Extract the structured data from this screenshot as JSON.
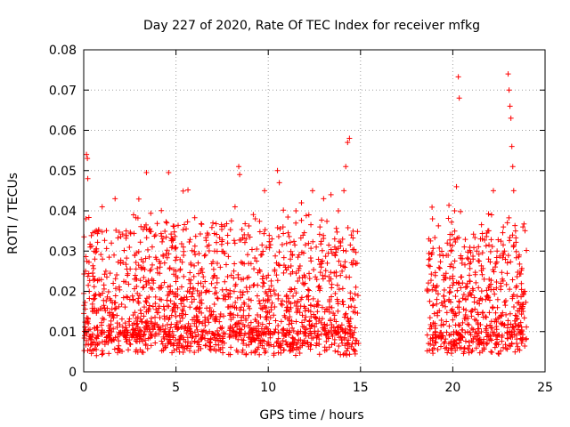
{
  "chart_data": {
    "type": "scatter",
    "title": "Day 227 of 2020, Rate Of TEC Index for receiver mfkg",
    "xlabel": "GPS time / hours",
    "ylabel": "ROTI / TECUs",
    "xlim": [
      0,
      25
    ],
    "ylim": [
      0,
      0.08
    ],
    "x_ticks": [
      "0",
      "5",
      "10",
      "15",
      "20",
      "25"
    ],
    "y_ticks": [
      "0",
      "0.01",
      "0.02",
      "0.03",
      "0.04",
      "0.05",
      "0.06",
      "0.07",
      "0.08"
    ],
    "x_tick_values": [
      0,
      5,
      10,
      15,
      20,
      25
    ],
    "y_tick_values": [
      0,
      0.01,
      0.02,
      0.03,
      0.04,
      0.05,
      0.06,
      0.07,
      0.08
    ],
    "grid": true,
    "legend": "none",
    "marker": "+",
    "color": "#ff0000",
    "data_gap_hours": [
      14.9,
      18.6
    ],
    "points": [
      [
        0.05,
        0.009
      ],
      [
        0.1,
        0.025
      ],
      [
        0.12,
        0.038
      ],
      [
        0.15,
        0.054
      ],
      [
        0.2,
        0.053
      ],
      [
        0.22,
        0.048
      ],
      [
        0.25,
        0.012
      ],
      [
        0.3,
        0.02
      ],
      [
        0.35,
        0.031
      ],
      [
        0.4,
        0.008
      ],
      [
        0.5,
        0.015
      ],
      [
        0.6,
        0.028
      ],
      [
        0.7,
        0.011
      ],
      [
        0.8,
        0.035
      ],
      [
        0.9,
        0.019
      ],
      [
        1.0,
        0.041
      ],
      [
        1.1,
        0.013
      ],
      [
        1.2,
        0.025
      ],
      [
        1.4,
        0.009
      ],
      [
        1.5,
        0.032
      ],
      [
        1.6,
        0.022
      ],
      [
        1.7,
        0.043
      ],
      [
        1.8,
        0.014
      ],
      [
        2.0,
        0.027
      ],
      [
        2.2,
        0.01
      ],
      [
        2.3,
        0.035
      ],
      [
        2.5,
        0.018
      ],
      [
        2.7,
        0.039
      ],
      [
        2.9,
        0.012
      ],
      [
        3.1,
        0.026
      ],
      [
        3.3,
        0.036
      ],
      [
        3.4,
        0.0495
      ],
      [
        3.5,
        0.015
      ],
      [
        3.7,
        0.023
      ],
      [
        3.9,
        0.034
      ],
      [
        4.1,
        0.011
      ],
      [
        4.3,
        0.029
      ],
      [
        4.5,
        0.037
      ],
      [
        4.6,
        0.0495
      ],
      [
        4.7,
        0.02
      ],
      [
        4.8,
        0.033
      ],
      [
        5.0,
        0.025
      ],
      [
        5.2,
        0.014
      ],
      [
        5.4,
        0.031
      ],
      [
        5.6,
        0.018
      ],
      [
        5.8,
        0.027
      ],
      [
        6.0,
        0.012
      ],
      [
        6.2,
        0.022
      ],
      [
        6.4,
        0.017
      ],
      [
        6.6,
        0.029
      ],
      [
        6.8,
        0.02
      ],
      [
        7.0,
        0.037
      ],
      [
        7.2,
        0.013
      ],
      [
        7.4,
        0.026
      ],
      [
        7.6,
        0.019
      ],
      [
        7.8,
        0.032
      ],
      [
        8.0,
        0.024
      ],
      [
        8.2,
        0.041
      ],
      [
        8.4,
        0.051
      ],
      [
        8.45,
        0.049
      ],
      [
        8.6,
        0.027
      ],
      [
        8.8,
        0.033
      ],
      [
        9.0,
        0.021
      ],
      [
        9.3,
        0.038
      ],
      [
        9.6,
        0.029
      ],
      [
        9.8,
        0.045
      ],
      [
        10.0,
        0.024
      ],
      [
        10.2,
        0.033
      ],
      [
        10.5,
        0.05
      ],
      [
        10.6,
        0.047
      ],
      [
        10.8,
        0.036
      ],
      [
        11.0,
        0.019
      ],
      [
        11.2,
        0.028
      ],
      [
        11.5,
        0.04
      ],
      [
        11.8,
        0.042
      ],
      [
        12.0,
        0.022
      ],
      [
        12.2,
        0.039
      ],
      [
        12.4,
        0.045
      ],
      [
        12.6,
        0.031
      ],
      [
        12.8,
        0.036
      ],
      [
        13.0,
        0.043
      ],
      [
        13.2,
        0.027
      ],
      [
        13.4,
        0.044
      ],
      [
        13.6,
        0.033
      ],
      [
        13.8,
        0.04
      ],
      [
        14.0,
        0.025
      ],
      [
        14.1,
        0.045
      ],
      [
        14.2,
        0.051
      ],
      [
        14.3,
        0.057
      ],
      [
        14.4,
        0.058
      ],
      [
        14.5,
        0.034
      ],
      [
        14.7,
        0.016
      ],
      [
        18.7,
        0.033
      ],
      [
        18.9,
        0.038
      ],
      [
        19.1,
        0.021
      ],
      [
        19.3,
        0.029
      ],
      [
        19.5,
        0.024
      ],
      [
        19.7,
        0.032
      ],
      [
        19.9,
        0.03
      ],
      [
        20.1,
        0.04
      ],
      [
        20.2,
        0.046
      ],
      [
        20.3,
        0.0733
      ],
      [
        20.35,
        0.068
      ],
      [
        20.5,
        0.027
      ],
      [
        20.7,
        0.021
      ],
      [
        20.9,
        0.024
      ],
      [
        21.1,
        0.028
      ],
      [
        21.3,
        0.03
      ],
      [
        21.5,
        0.033
      ],
      [
        21.7,
        0.023
      ],
      [
        21.9,
        0.035
      ],
      [
        22.1,
        0.039
      ],
      [
        22.2,
        0.045
      ],
      [
        22.4,
        0.03
      ],
      [
        22.6,
        0.022
      ],
      [
        22.8,
        0.03
      ],
      [
        23.0,
        0.074
      ],
      [
        23.05,
        0.07
      ],
      [
        23.1,
        0.066
      ],
      [
        23.15,
        0.063
      ],
      [
        23.2,
        0.056
      ],
      [
        23.25,
        0.051
      ],
      [
        23.3,
        0.045
      ],
      [
        23.4,
        0.035
      ],
      [
        23.6,
        0.029
      ],
      [
        23.8,
        0.036
      ],
      [
        23.9,
        0.02
      ]
    ]
  }
}
